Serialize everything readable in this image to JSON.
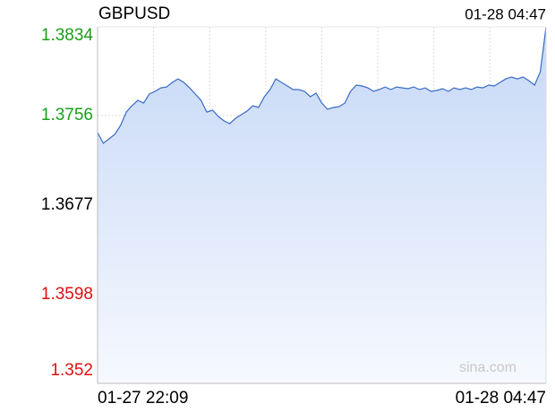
{
  "chart_data": {
    "type": "area",
    "title": "GBPUSD",
    "latest_time": "01-28 04:47",
    "watermark": "sina.com",
    "categories": [
      "01-27 22:09",
      null,
      null,
      null,
      null,
      null,
      null,
      null,
      null,
      null,
      null,
      null,
      null,
      null,
      null,
      null,
      null,
      null,
      null,
      null,
      null,
      null,
      null,
      null,
      null,
      null,
      null,
      null,
      null,
      null,
      null,
      null,
      null,
      null,
      null,
      null,
      null,
      null,
      null,
      null,
      null,
      null,
      null,
      null,
      null,
      null,
      null,
      null,
      null,
      null,
      null,
      null,
      null,
      null,
      null,
      null,
      null,
      null,
      null,
      null,
      null,
      null,
      null,
      null,
      null,
      null,
      null,
      null,
      null,
      null,
      null,
      null,
      null,
      null,
      null,
      null,
      null,
      null,
      "01-28 04:47"
    ],
    "series": [
      {
        "name": "GBPUSD",
        "color": "#3a6bc4",
        "values": [
          1.37409,
          1.37314,
          1.37354,
          1.37393,
          1.37472,
          1.3759,
          1.37646,
          1.37693,
          1.37669,
          1.37748,
          1.37772,
          1.37803,
          1.37811,
          1.37851,
          1.37882,
          1.37851,
          1.37803,
          1.37748,
          1.37693,
          1.3759,
          1.37606,
          1.37551,
          1.37512,
          1.37488,
          1.37535,
          1.37567,
          1.37598,
          1.37646,
          1.3763,
          1.37725,
          1.37788,
          1.37882,
          1.37851,
          1.37819,
          1.37788,
          1.37788,
          1.37772,
          1.37725,
          1.37756,
          1.37669,
          1.37614,
          1.3763,
          1.37638,
          1.37669,
          1.37772,
          1.37827,
          1.37819,
          1.37803,
          1.37772,
          1.37788,
          1.37811,
          1.37788,
          1.37811,
          1.37803,
          1.37796,
          1.37811,
          1.37788,
          1.37803,
          1.37772,
          1.3778,
          1.37796,
          1.37772,
          1.37803,
          1.37788,
          1.37803,
          1.37788,
          1.37811,
          1.37803,
          1.37827,
          1.37819,
          1.37851,
          1.37882,
          1.37898,
          1.37882,
          1.37898,
          1.37867,
          1.37827,
          1.37945,
          1.3834
        ]
      }
    ],
    "ylim": [
      1.352,
      1.3834
    ],
    "yticks": [
      1.352,
      1.3598,
      1.3677,
      1.3756,
      1.3834
    ],
    "ytick_colors": [
      "#e01010",
      "#e01010",
      "#000000",
      "#18a018",
      "#18a018"
    ],
    "grid": true
  }
}
